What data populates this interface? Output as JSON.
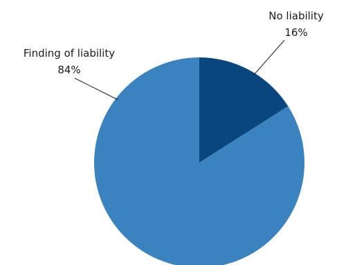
{
  "chart_data": {
    "type": "pie",
    "title": "",
    "slices": [
      {
        "label": "No liability",
        "value": 16,
        "value_label": "16%",
        "color": "#0a467e"
      },
      {
        "label": "Finding of liability",
        "value": 84,
        "value_label": "84%",
        "color": "#3a83bf"
      }
    ],
    "start_angle_deg": 0,
    "direction": "clockwise",
    "legend": "none"
  }
}
